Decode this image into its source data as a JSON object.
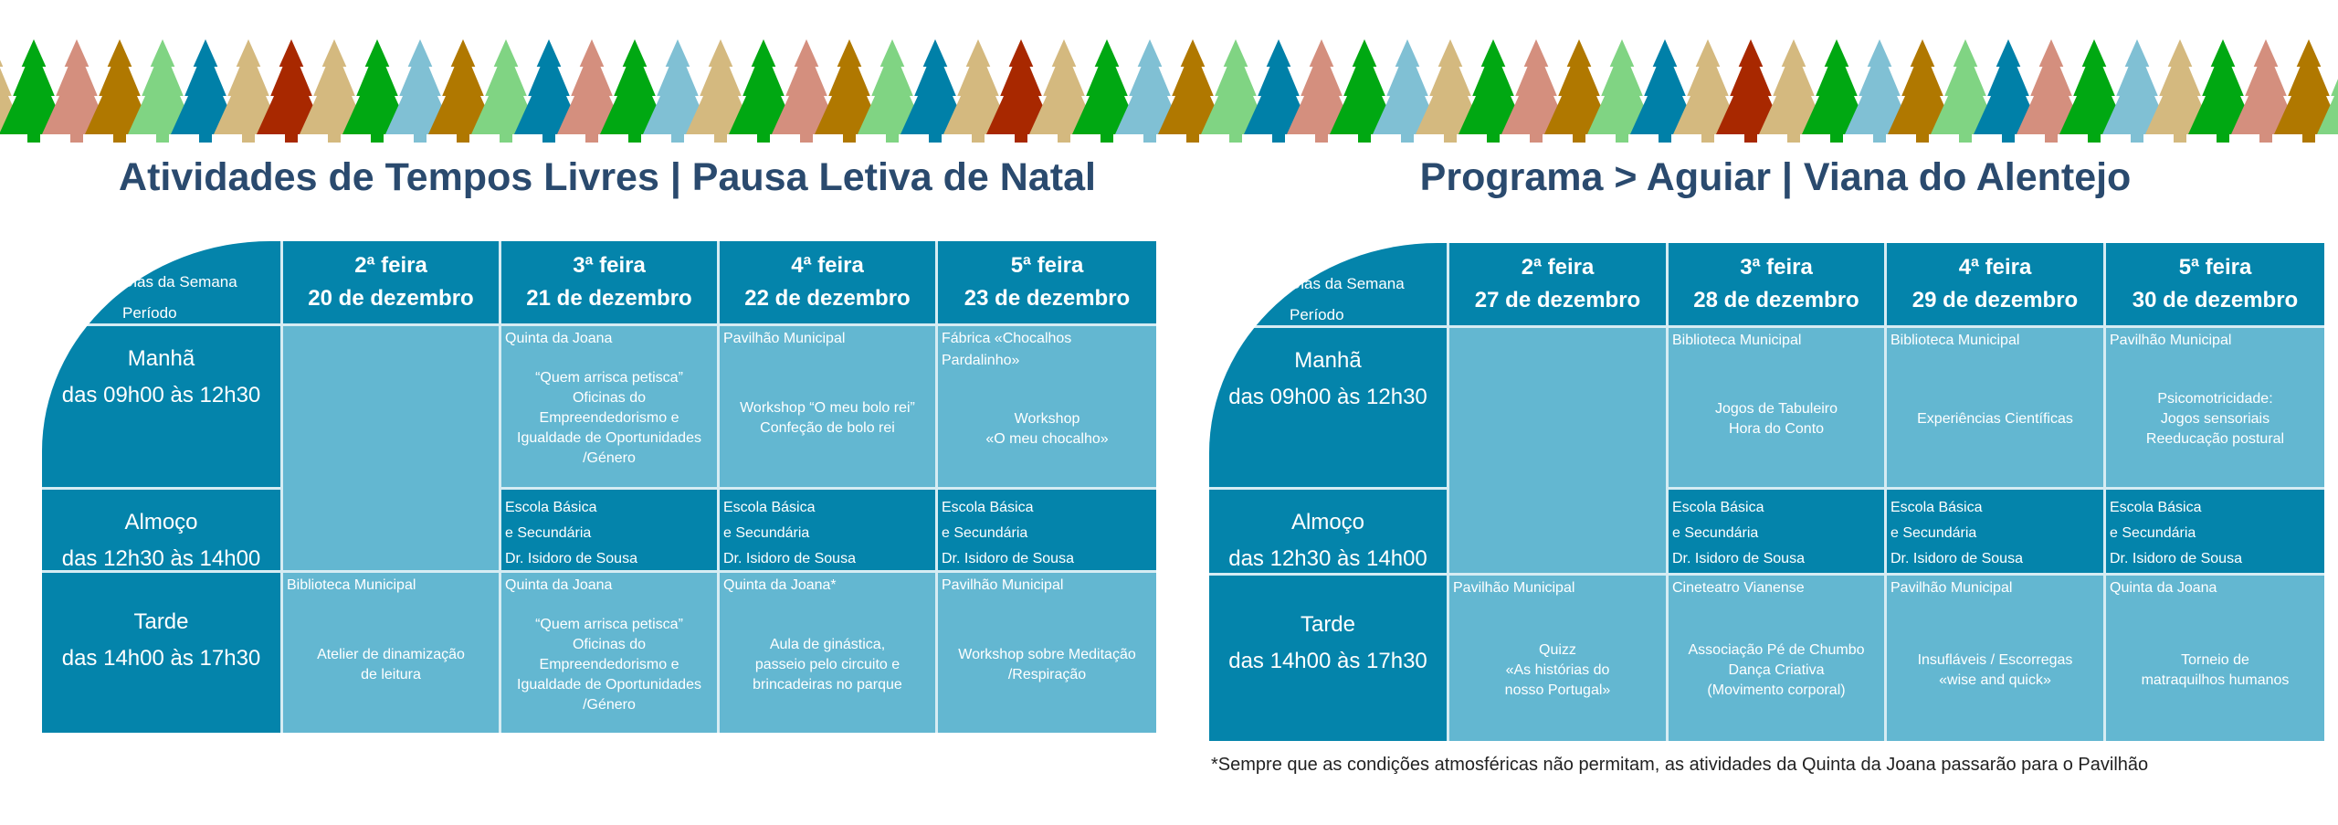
{
  "colors": {
    "dark": "#0484ab",
    "light": "#63b7d1",
    "title": "#2a4a6e",
    "trees": [
      "#d4b97f",
      "#00a812",
      "#d48f7e",
      "#b07800",
      "#80d483",
      "#0080a8",
      "#d4b97f",
      "#a82800",
      "#d4b97f",
      "#00a812",
      "#80c0d4",
      "#b07800",
      "#80d483",
      "#0080a8",
      "#d48f7e",
      "#00a812",
      "#80c0d4"
    ]
  },
  "tables": [
    {
      "title": "Atividades de Tempos Livres | Pausa Letiva de Natal",
      "corner": {
        "dias": "Dias da Semana",
        "periodo": "Período"
      },
      "days": [
        {
          "name": "2ª feira",
          "date": "20 de dezembro"
        },
        {
          "name": "3ª feira",
          "date": "21 de dezembro"
        },
        {
          "name": "4ª feira",
          "date": "22 de dezembro"
        },
        {
          "name": "5ª feira",
          "date": "23 de dezembro"
        }
      ],
      "periods": [
        {
          "name": "Manhã",
          "time": "das 09h00 às 12h30"
        },
        {
          "name": "Almoço",
          "time": "das 12h30 às 14h00"
        },
        {
          "name": "Tarde",
          "time": "das 14h00 às 17h30"
        }
      ],
      "morning": [
        {
          "venue": "Quinta da Joana",
          "desc": "“Quem arrisca petisca”\nOficinas do\nEmpreendedorismo e\nIgualdade de Oportunidades\n/Género"
        },
        {
          "venue": "Pavilhão Municipal",
          "desc": "Workshop “O meu bolo rei”\nConfeção de bolo rei"
        },
        {
          "venue": "Fábrica «Chocalhos Pardalinho»",
          "desc": "Workshop\n«O meu chocalho»"
        }
      ],
      "lunch": [
        {
          "venue": "Escola Básica\ne Secundária\nDr. Isidoro de Sousa"
        },
        {
          "venue": "Escola Básica\ne Secundária\nDr. Isidoro de Sousa"
        },
        {
          "venue": "Escola Básica\ne Secundária\nDr. Isidoro de Sousa"
        }
      ],
      "afternoon": [
        {
          "venue": "Biblioteca Municipal",
          "desc": "Atelier de dinamização\nde leitura"
        },
        {
          "venue": "Quinta da Joana",
          "desc": "“Quem arrisca petisca”\nOficinas do\nEmpreendedorismo e\nIgualdade de Oportunidades\n/Género"
        },
        {
          "venue": "Quinta da Joana*",
          "desc": "Aula de ginástica,\npasseio pelo circuito e\nbrincadeiras no parque"
        },
        {
          "venue": "Pavilhão Municipal",
          "desc": "Workshop sobre Meditação\n/Respiração"
        }
      ]
    },
    {
      "title": "Programa > Aguiar | Viana do Alentejo",
      "corner": {
        "dias": "Dias da Semana",
        "periodo": "Período"
      },
      "days": [
        {
          "name": "2ª feira",
          "date": "27 de dezembro"
        },
        {
          "name": "3ª feira",
          "date": "28 de dezembro"
        },
        {
          "name": "4ª feira",
          "date": "29 de dezembro"
        },
        {
          "name": "5ª feira",
          "date": "30 de dezembro"
        }
      ],
      "periods": [
        {
          "name": "Manhã",
          "time": "das 09h00 às 12h30"
        },
        {
          "name": "Almoço",
          "time": "das 12h30 às 14h00"
        },
        {
          "name": "Tarde",
          "time": "das 14h00 às 17h30"
        }
      ],
      "morning": [
        {
          "venue": "Biblioteca Municipal",
          "desc": "Jogos de Tabuleiro\nHora do Conto"
        },
        {
          "venue": "Biblioteca Municipal",
          "desc": "Experiências Científicas"
        },
        {
          "venue": "Pavilhão  Municipal",
          "desc": "Psicomotricidade:\nJogos sensoriais\nReeducação postural"
        }
      ],
      "lunch": [
        {
          "venue": "Escola Básica\ne Secundária\nDr. Isidoro de Sousa"
        },
        {
          "venue": "Escola Básica\ne Secundária\nDr. Isidoro de Sousa"
        },
        {
          "venue": "Escola Básica\ne Secundária\nDr. Isidoro de Sousa"
        }
      ],
      "afternoon": [
        {
          "venue": "Pavilhão Municipal",
          "desc": "Quizz\n«As histórias do\nnosso Portugal»"
        },
        {
          "venue": "Cineteatro Vianense",
          "desc": "Associação Pé de Chumbo\nDança Criativa\n(Movimento corporal)"
        },
        {
          "venue": "Pavilhão  Municipal",
          "desc": "Insufláveis / Escorregas\n«wise and quick»"
        },
        {
          "venue": "Quinta da Joana",
          "desc": "Torneio de\nmatraquilhos humanos"
        }
      ]
    }
  ],
  "footnote": "*Sempre que as condições atmosféricas não permitam, as atividades da Quinta da Joana passarão para o Pavilhão"
}
